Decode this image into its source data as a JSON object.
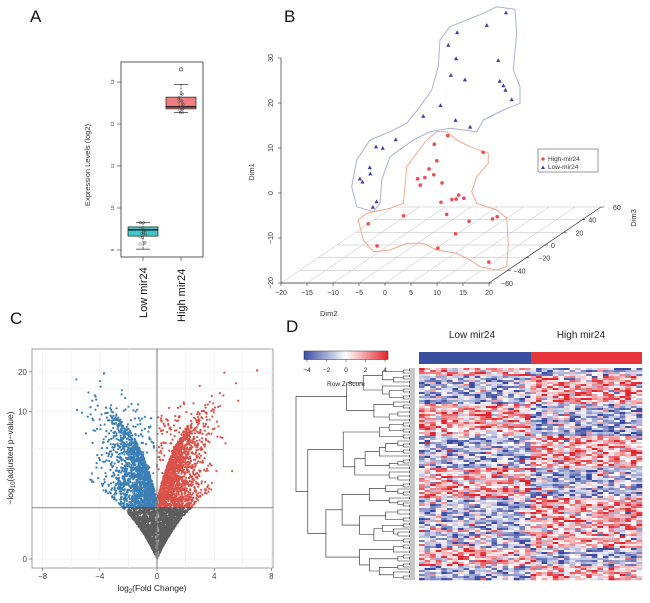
{
  "panels": {
    "a": "A",
    "b": "B",
    "c": "C",
    "d": "D"
  },
  "chart_data": [
    {
      "type": "box",
      "ylabel": "Expression Levels (log2)",
      "ylim": [
        8.9,
        13.45
      ],
      "yticks": [
        "9",
        "10",
        "11",
        "12",
        "13"
      ],
      "categories": [
        "Low mir24",
        "High mir24"
      ],
      "colors": [
        "#3ec7cc",
        "#ee7e80"
      ],
      "boxes": [
        {
          "name": "Low mir24",
          "min": 9.02,
          "q1": 9.33,
          "median": 9.48,
          "q3": 9.55,
          "max": 9.65,
          "outliers": []
        },
        {
          "name": "High mir24",
          "min": 12.27,
          "q1": 12.36,
          "median": 12.41,
          "q3": 12.64,
          "max": 12.94,
          "outliers": [
            13.3
          ]
        }
      ]
    },
    {
      "type": "scatter3d",
      "xlabel": "Dim2",
      "ylabel": "Dim1",
      "zlabel": "Dim3",
      "xticks": [
        "-20",
        "-15",
        "-10",
        "-5",
        "0",
        "5",
        "10",
        "15",
        "20"
      ],
      "yticks": [
        "-20",
        "-10",
        "0",
        "10",
        "20",
        "30"
      ],
      "zticks": [
        "-60",
        "-40",
        "-20",
        "0",
        "20",
        "40",
        "60"
      ],
      "legend_position": "right",
      "series": [
        {
          "name": "High-mir24",
          "marker": "circle",
          "color": "#ee4b52",
          "points": [
            [
              1.3,
              4.3
            ],
            [
              -1.3,
              2.4
            ],
            [
              8.1,
              0.6
            ],
            [
              -0.8,
              -1.3
            ],
            [
              -2.3,
              -3.1
            ],
            [
              -1.4,
              -4.4
            ],
            [
              -4.5,
              -5.3
            ],
            [
              -3.1,
              -5
            ],
            [
              -4,
              -6.7
            ],
            [
              0.2,
              -6.2
            ],
            [
              3.4,
              -8.9
            ],
            [
              0,
              -10.5
            ],
            [
              2.1,
              -9.9
            ],
            [
              2.9,
              -9.8
            ],
            [
              4.4,
              -9.6
            ],
            [
              -7.2,
              -13.5
            ],
            [
              1.1,
              -13.2
            ],
            [
              -14,
              -15.3
            ],
            [
              5.4,
              -14.7
            ],
            [
              10.8,
              -13.7
            ],
            [
              9.9,
              -14.2
            ],
            [
              2.8,
              -17.5
            ],
            [
              -12.3,
              -20.2
            ],
            [
              -0.6,
              -20.7
            ],
            [
              9.2,
              -23.8
            ]
          ]
        },
        {
          "name": "Low-mir24",
          "marker": "triangle",
          "color": "#3c3f9e",
          "points": [
            [
              12.5,
              31.6
            ],
            [
              8.8,
              28.8
            ],
            [
              3.1,
              27.2
            ],
            [
              1.4,
              24.4
            ],
            [
              2.9,
              21.4
            ],
            [
              11,
              21
            ],
            [
              1.9,
              17.7
            ],
            [
              4.6,
              16.7
            ],
            [
              11.3,
              16.4
            ],
            [
              12,
              15.4
            ],
            [
              12.4,
              14.4
            ],
            [
              13.6,
              12.3
            ],
            [
              -0.1,
              11
            ],
            [
              -3.4,
              8.6
            ],
            [
              2.8,
              7.7
            ],
            [
              5.6,
              6.2
            ],
            [
              -8.7,
              3.4
            ],
            [
              -12.5,
              1.8
            ],
            [
              -11.2,
              1.5
            ],
            [
              -13.7,
              -2.8
            ],
            [
              -13.6,
              -4.2
            ],
            [
              -15.6,
              -5.3
            ],
            [
              -15.1,
              -6
            ],
            [
              -12.4,
              -10.4
            ],
            [
              -13.1,
              -11.6
            ]
          ]
        }
      ],
      "hull_colors": [
        "#f2a98a",
        "#aab0d8"
      ]
    },
    {
      "type": "scatter",
      "subtype": "volcano",
      "xlabel_main": "log",
      "xlabel_sub": "2",
      "xlabel_rest": "(Fold Change)",
      "ylabel_pre": "−log",
      "ylabel_sub": "10",
      "ylabel_rest": "(adjusted p−value)",
      "xlim": [
        -8.6,
        8.6
      ],
      "xticks": [
        "-8",
        "-4",
        "0",
        "4",
        "8"
      ],
      "xtick_values": [
        -8,
        -4,
        0,
        4,
        8
      ],
      "yticks": [
        "0",
        "10",
        "20"
      ],
      "ytick_values": [
        0,
        10,
        20
      ],
      "yscale": "log1p",
      "ylim": [
        0,
        22
      ],
      "thresholds": {
        "fold_change": 0,
        "adjusted_p_value_neglog10": 1.3
      },
      "grid": true,
      "colors": {
        "down": "#3b7fb6",
        "up": "#d9534a",
        "not_significant": "#5e5e5e"
      },
      "max_points": {
        "down": [
          -3.7,
          19.5
        ],
        "up": [
          7.0,
          20.5
        ]
      }
    },
    {
      "type": "heatmap",
      "column_groups": [
        "Low mir24",
        "High mir24"
      ],
      "group_colors": [
        "#3b4fa0",
        "#e8353c"
      ],
      "color_key_title": "Row Z-Score",
      "color_key_ticks": [
        "−4",
        "−2",
        "0",
        "2",
        "4"
      ],
      "color_range": [
        -4,
        4
      ],
      "colors": {
        "low": "#3a4ba3",
        "mid": "#ffffff",
        "high": "#e3262e"
      },
      "row_dendrogram": true,
      "pattern": "rows down in Low mir24 are up in High mir24 and vice versa"
    }
  ]
}
